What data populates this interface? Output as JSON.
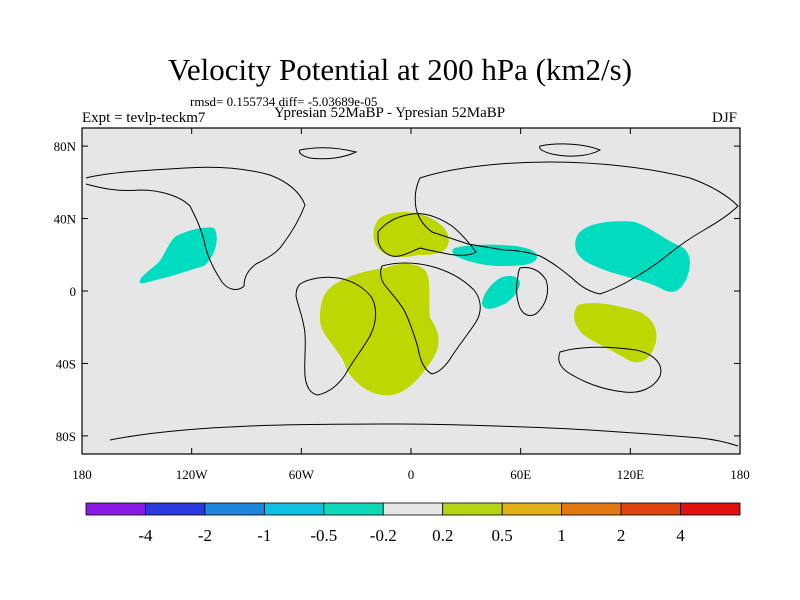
{
  "header": {
    "title": "Velocity Potential at 200 hPa (km2/s)",
    "stats": "rmsd= 0.155734  diff= -5.03689e-05",
    "expt": "Expt = tevlp-teckm7",
    "subtitle": "Ypresian  52MaBP - Ypresian  52MaBP",
    "season": "DJF"
  },
  "map": {
    "x_ticks": [
      "180",
      "120W",
      "60W",
      "0",
      "60E",
      "120E",
      "180"
    ],
    "y_ticks": [
      "80N",
      "40N",
      "0",
      "40S",
      "80S"
    ],
    "background_color": "#e6e6e6",
    "coast_color": "#000000"
  },
  "colorbar": {
    "labels": [
      "-4",
      "-2",
      "-1",
      "-0.5",
      "-0.2",
      "0.2",
      "0.5",
      "1",
      "2",
      "4"
    ],
    "colors": [
      "#8a1ae6",
      "#2a3ae0",
      "#1f86dd",
      "#10c0e0",
      "#0fd8b8",
      "#e6e6e6",
      "#b4d414",
      "#dfb114",
      "#e07a10",
      "#e04510",
      "#e0100f"
    ]
  },
  "regions": [
    {
      "name": "positive-anomaly-europe",
      "level": "0.2 to 0.5",
      "color": "#bed700"
    },
    {
      "name": "positive-anomaly-south-america-atlantic",
      "level": "0.2 to 0.5",
      "color": "#bed700"
    },
    {
      "name": "positive-anomaly-indian-ocean",
      "level": "0.2 to 0.5",
      "color": "#bed700"
    },
    {
      "name": "negative-anomaly-north-pacific",
      "level": "-0.5 to -0.2",
      "color": "#00dcc0"
    },
    {
      "name": "negative-anomaly-east-asia",
      "level": "-0.5 to -0.2",
      "color": "#00dcc0"
    },
    {
      "name": "negative-anomaly-arabia",
      "level": "-0.5 to -0.2",
      "color": "#00dcc0"
    },
    {
      "name": "negative-anomaly-east-africa",
      "level": "-0.5 to -0.2",
      "color": "#00dcc0"
    }
  ]
}
